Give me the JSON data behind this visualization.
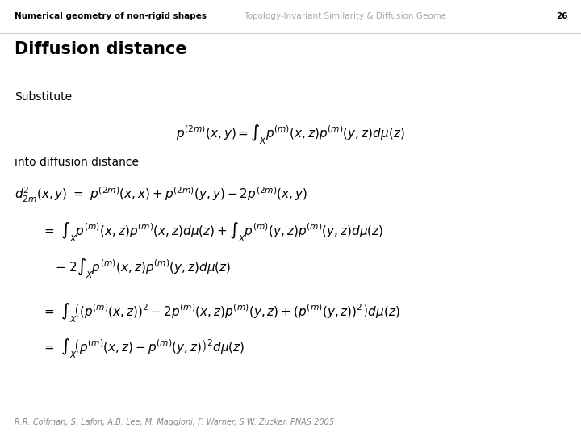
{
  "bg_color": "#ffffff",
  "header_left_text": "Numerical geometry of non-rigid shapes",
  "header_right_text": "Topology-Invariant Similarity & Diffusion Geome",
  "header_page": "26",
  "header_left_color": "#000000",
  "header_right_color": "#aaaaaa",
  "title": "Diffusion distance",
  "label_substitute": "Substitute",
  "label_into": "into diffusion distance",
  "footer_text": "R.R. Coifman, S. Lafon, A.B. Lee, M. Maggioni, F. Warner, S.W. Zucker, PNAS 2005",
  "header_fontsize": 7.5,
  "title_fontsize": 15,
  "label_fontsize": 10,
  "formula_fontsize": 11,
  "footer_fontsize": 7
}
